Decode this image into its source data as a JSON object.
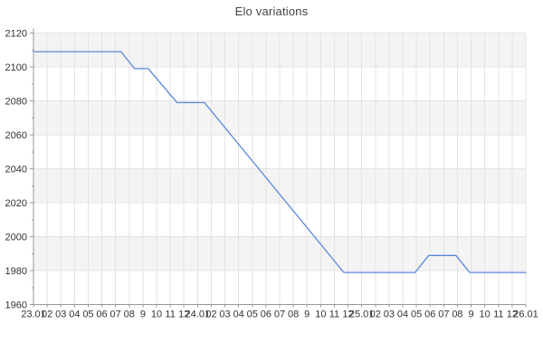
{
  "chart_data": {
    "type": "line",
    "title": "Elo variations",
    "xlabel": "",
    "ylabel": "",
    "ylim": [
      1960,
      2120
    ],
    "ytick_step": 20,
    "yticks": [
      2120,
      2100,
      2080,
      2060,
      2040,
      2020,
      2000,
      1980,
      1960
    ],
    "y_minor_step": 10,
    "xtick_labels": [
      "23.01",
      "02",
      "03",
      "04",
      "05",
      "06",
      "07",
      "08",
      "9",
      "10",
      "11",
      "12",
      "24.01",
      "02",
      "03",
      "04",
      "05",
      "06",
      "07",
      "08",
      "9",
      "10",
      "11",
      "12",
      "25.01",
      "02",
      "03",
      "04",
      "05",
      "06",
      "07",
      "08",
      "9",
      "10",
      "11",
      "12",
      "26.01"
    ],
    "grid": true,
    "legend": "none",
    "series": [
      {
        "name": "Elo",
        "color": "#5b87d8",
        "points": [
          [
            0.0,
            2109
          ],
          [
            6.4,
            2109
          ],
          [
            7.4,
            2099
          ],
          [
            8.4,
            2099
          ],
          [
            10.5,
            2079
          ],
          [
            12.5,
            2079
          ],
          [
            22.7,
            1979
          ],
          [
            27.9,
            1979
          ],
          [
            28.9,
            1989
          ],
          [
            30.9,
            1989
          ],
          [
            31.9,
            1979
          ],
          [
            36.0,
            1979
          ]
        ]
      }
    ],
    "colors": {
      "background": "#ffffff",
      "band_even": "#f4f4f4",
      "band_odd": "#ffffff",
      "gridline": "#e3e3e3",
      "axis": "#999999",
      "tick_text": "#333333",
      "title_text": "#444444"
    }
  }
}
